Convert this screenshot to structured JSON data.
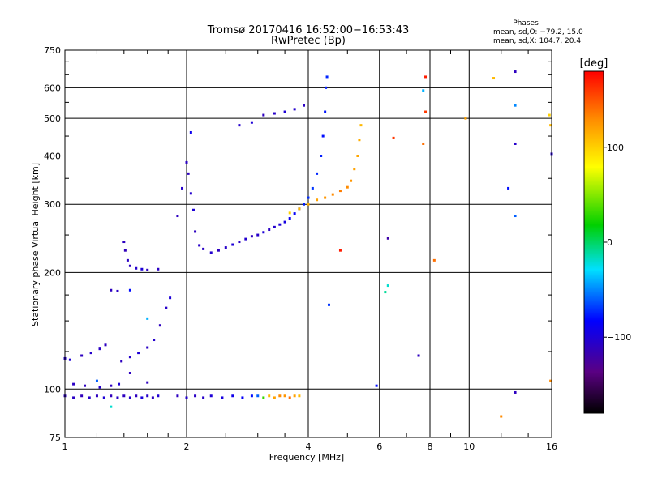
{
  "chart_data": {
    "type": "scatter",
    "title": "Tromsø 20170416 16:52:00−16:53:43",
    "subtitle": "RwPretec (Bp)",
    "xlabel": "Frequency [MHz]",
    "ylabel": "Stationary phase Virtual Height [km]",
    "x_scale": "log",
    "y_scale": "log",
    "xlim": [
      1,
      16
    ],
    "ylim": [
      75,
      750
    ],
    "x_ticks": [
      "1",
      "2",
      "4",
      "6",
      "8",
      "10",
      "16"
    ],
    "y_ticks": [
      "75",
      "100",
      "200",
      "300",
      "400",
      "500",
      "600",
      "750"
    ],
    "grid": true,
    "phase_stats": {
      "header": "Phases",
      "line_o": "mean, sd,O: −79.2, 15.0",
      "line_x": "mean, sd,X: 104.7, 20.4"
    },
    "colorbar": {
      "label": "[deg]",
      "range": [
        -180,
        180
      ],
      "ticks": [
        "100",
        "0",
        "−100"
      ]
    },
    "series": [
      {
        "trace": "E-layer echoes near 96 km",
        "points": [
          [
            1.0,
            96,
            -110
          ],
          [
            1.05,
            95,
            -108
          ],
          [
            1.1,
            96,
            -112
          ],
          [
            1.15,
            95,
            -105
          ],
          [
            1.2,
            96,
            -110
          ],
          [
            1.25,
            95,
            -100
          ],
          [
            1.3,
            96,
            -112
          ],
          [
            1.35,
            95,
            -108
          ],
          [
            1.4,
            96,
            -110
          ],
          [
            1.45,
            95,
            -104
          ],
          [
            1.5,
            96,
            -110
          ],
          [
            1.55,
            95,
            -98
          ],
          [
            1.6,
            96,
            -106
          ],
          [
            1.65,
            95,
            -110
          ],
          [
            1.7,
            96,
            -102
          ],
          [
            1.9,
            96,
            -110
          ],
          [
            2.0,
            95,
            -104
          ],
          [
            2.1,
            96,
            -108
          ],
          [
            2.2,
            95,
            -106
          ],
          [
            2.3,
            96,
            -100
          ],
          [
            2.45,
            95,
            -96
          ],
          [
            2.6,
            96,
            -92
          ],
          [
            2.75,
            95,
            -86
          ],
          [
            2.9,
            96,
            -80
          ],
          [
            3.0,
            96,
            -60
          ],
          [
            3.1,
            95,
            30
          ],
          [
            3.2,
            96,
            110
          ],
          [
            3.3,
            95,
            120
          ],
          [
            3.4,
            96,
            130
          ],
          [
            3.5,
            96,
            125
          ],
          [
            3.6,
            95,
            140
          ],
          [
            3.7,
            96,
            120
          ],
          [
            3.8,
            96,
            110
          ]
        ]
      },
      {
        "trace": "Es echoes near 100-104 km",
        "points": [
          [
            1.05,
            103,
            -108
          ],
          [
            1.12,
            102,
            -110
          ],
          [
            1.22,
            101,
            -105
          ],
          [
            1.3,
            102,
            -110
          ],
          [
            1.36,
            103,
            -100
          ],
          [
            1.6,
            104,
            -110
          ]
        ]
      },
      {
        "trace": "Low-frequency F trace 118-180 km",
        "points": [
          [
            1.0,
            120,
            -105
          ],
          [
            1.03,
            119,
            -100
          ],
          [
            1.1,
            122,
            -110
          ],
          [
            1.16,
            124,
            -105
          ],
          [
            1.22,
            127,
            -108
          ],
          [
            1.26,
            130,
            -110
          ],
          [
            1.38,
            118,
            -110
          ],
          [
            1.45,
            121,
            -105
          ],
          [
            1.52,
            124,
            -100
          ],
          [
            1.6,
            128,
            -108
          ],
          [
            1.66,
            134,
            -104
          ],
          [
            1.72,
            146,
            -110
          ],
          [
            1.78,
            162,
            -106
          ],
          [
            1.82,
            172,
            -100
          ],
          [
            1.3,
            180,
            -110
          ],
          [
            1.35,
            179,
            -108
          ]
        ]
      },
      {
        "trace": "F1 cusp near 205-235 km",
        "points": [
          [
            1.4,
            240,
            -110
          ],
          [
            1.41,
            228,
            -112
          ],
          [
            1.43,
            215,
            -108
          ],
          [
            1.45,
            208,
            -110
          ],
          [
            1.5,
            205,
            -105
          ],
          [
            1.55,
            204,
            -100
          ],
          [
            1.6,
            203,
            -110
          ],
          [
            1.7,
            204,
            -108
          ]
        ]
      },
      {
        "trace": "F2 O-mode trace",
        "points": [
          [
            1.9,
            280,
            -110
          ],
          [
            1.95,
            330,
            -105
          ],
          [
            2.0,
            385,
            -108
          ],
          [
            2.02,
            360,
            -110
          ],
          [
            2.05,
            320,
            -104
          ],
          [
            2.08,
            290,
            -100
          ],
          [
            2.1,
            255,
            -110
          ],
          [
            2.15,
            235,
            -106
          ],
          [
            2.2,
            230,
            -108
          ],
          [
            2.3,
            225,
            -104
          ],
          [
            2.4,
            228,
            -110
          ],
          [
            2.5,
            232,
            -106
          ],
          [
            2.6,
            236,
            -100
          ],
          [
            2.7,
            240,
            -108
          ],
          [
            2.8,
            244,
            -104
          ],
          [
            2.9,
            248,
            -110
          ],
          [
            3.0,
            250,
            -106
          ],
          [
            3.1,
            254,
            -100
          ],
          [
            3.2,
            258,
            -108
          ],
          [
            3.3,
            262,
            -104
          ],
          [
            3.4,
            266,
            -100
          ],
          [
            3.5,
            270,
            -96
          ],
          [
            3.6,
            276,
            -90
          ],
          [
            3.7,
            284,
            -86
          ],
          [
            3.8,
            292,
            -80
          ],
          [
            3.9,
            300,
            -76
          ],
          [
            4.0,
            312,
            -72
          ],
          [
            4.1,
            330,
            -70
          ],
          [
            4.2,
            360,
            -74
          ],
          [
            4.3,
            400,
            -76
          ],
          [
            4.35,
            450,
            -80
          ],
          [
            4.4,
            520,
            -78
          ],
          [
            4.42,
            600,
            -76
          ],
          [
            4.45,
            640,
            -74
          ]
        ]
      },
      {
        "trace": "F2 X-mode trace",
        "points": [
          [
            3.6,
            285,
            100
          ],
          [
            3.8,
            292,
            110
          ],
          [
            4.0,
            300,
            115
          ],
          [
            4.2,
            308,
            120
          ],
          [
            4.4,
            312,
            125
          ],
          [
            4.6,
            318,
            130
          ],
          [
            4.8,
            325,
            135
          ],
          [
            5.0,
            332,
            130
          ],
          [
            5.1,
            345,
            125
          ],
          [
            5.2,
            370,
            120
          ],
          [
            5.3,
            400,
            118
          ],
          [
            5.35,
            440,
            115
          ],
          [
            5.4,
            480,
            110
          ]
        ]
      },
      {
        "trace": "Upper oblique trace 480-540 km",
        "points": [
          [
            2.7,
            480,
            -105
          ],
          [
            2.9,
            488,
            -100
          ],
          [
            3.1,
            510,
            -110
          ],
          [
            3.3,
            515,
            -106
          ],
          [
            3.5,
            520,
            -100
          ],
          [
            3.7,
            528,
            -104
          ],
          [
            3.9,
            540,
            -108
          ]
        ]
      },
      {
        "trace": "Sparse scattered echoes",
        "points": [
          [
            2.05,
            460,
            -90
          ],
          [
            1.45,
            180,
            -80
          ],
          [
            1.6,
            152,
            -40
          ],
          [
            1.45,
            110,
            -110
          ],
          [
            1.2,
            105,
            -60
          ],
          [
            1.3,
            90,
            -20
          ],
          [
            4.8,
            228,
            170
          ],
          [
            4.5,
            165,
            -70
          ],
          [
            6.3,
            185,
            -20
          ],
          [
            6.2,
            178,
            -10
          ],
          [
            6.5,
            445,
            160
          ],
          [
            6.3,
            245,
            -120
          ],
          [
            5.9,
            102,
            -80
          ],
          [
            7.5,
            122,
            -110
          ],
          [
            7.8,
            640,
            170
          ],
          [
            7.8,
            520,
            160
          ],
          [
            7.7,
            590,
            -40
          ],
          [
            7.7,
            430,
            140
          ],
          [
            8.2,
            215,
            140
          ],
          [
            9.8,
            500,
            120
          ],
          [
            11.5,
            635,
            110
          ],
          [
            12.5,
            330,
            -80
          ],
          [
            13.0,
            660,
            -110
          ],
          [
            13.0,
            540,
            -50
          ],
          [
            13.0,
            430,
            -105
          ],
          [
            13.0,
            280,
            -60
          ],
          [
            13.0,
            98,
            -110
          ],
          [
            12.0,
            85,
            130
          ],
          [
            15.8,
            510,
            100
          ],
          [
            15.9,
            480,
            110
          ],
          [
            16.0,
            405,
            -105
          ],
          [
            15.9,
            105,
            130
          ]
        ]
      }
    ]
  }
}
